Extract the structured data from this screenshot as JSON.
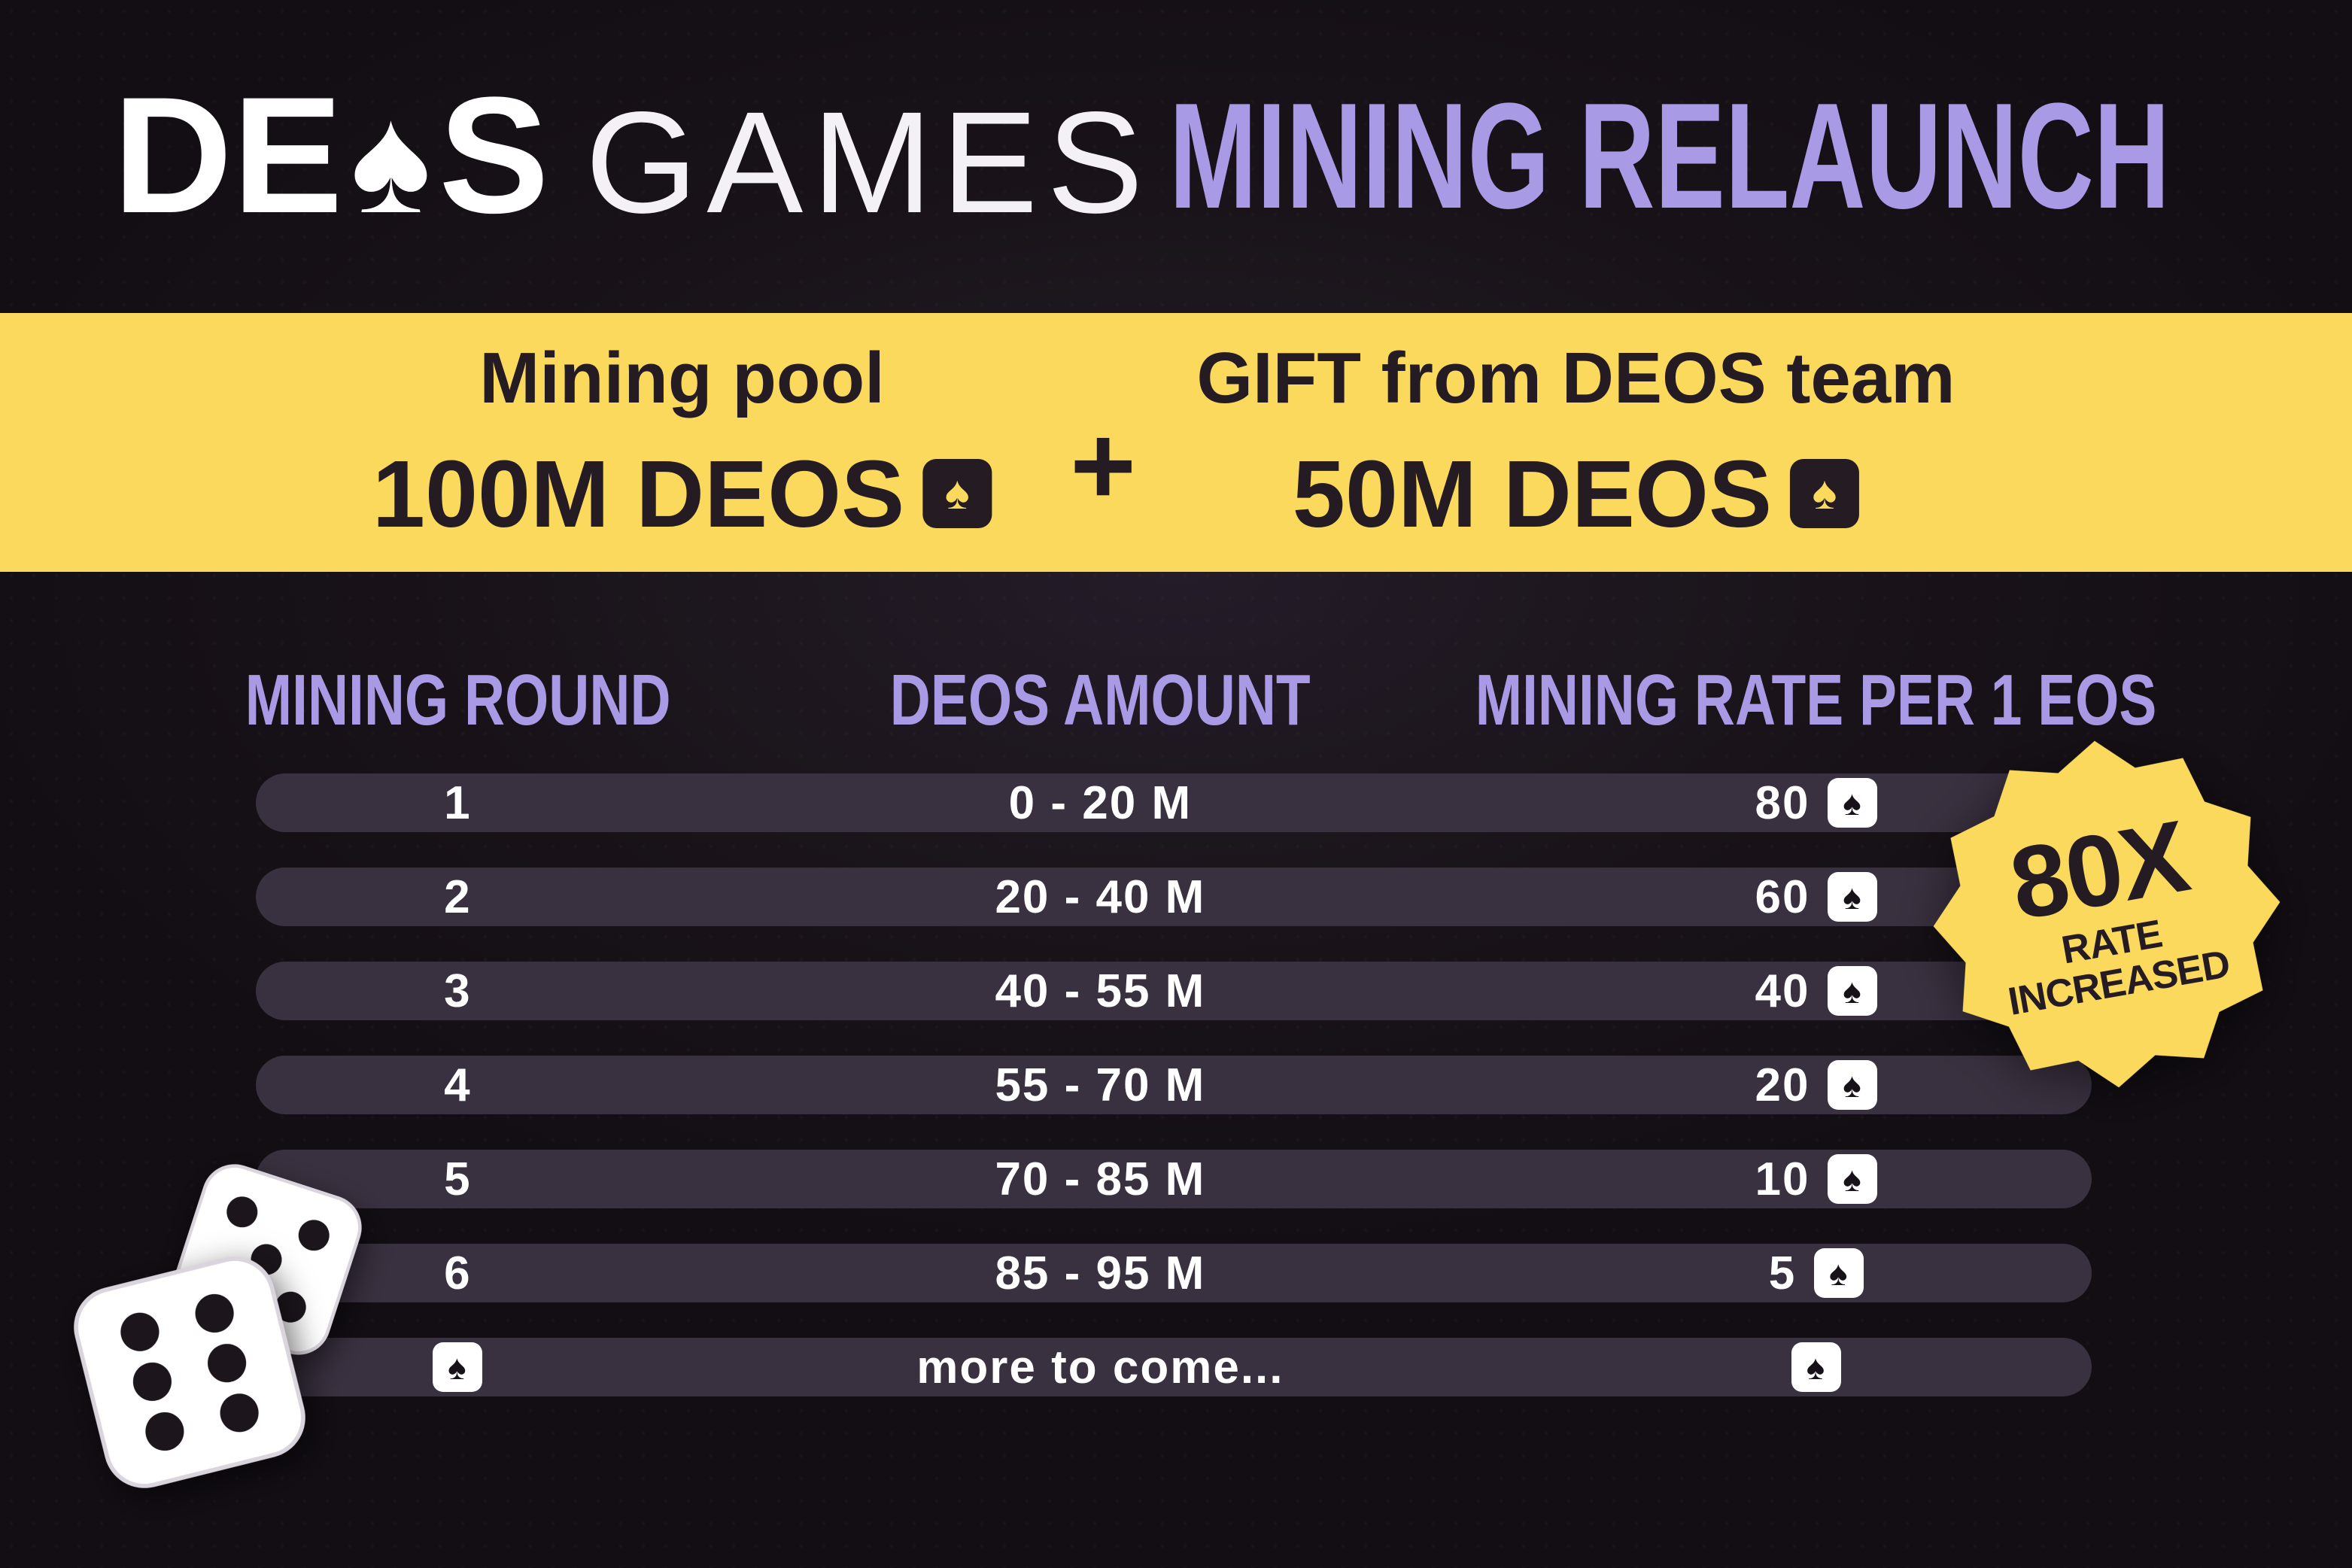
{
  "icons": {
    "spade": "♠"
  },
  "header": {
    "brand_de": "DE",
    "brand_s": "S",
    "brand_games": "GAMES",
    "title": "MINING RELAUNCH"
  },
  "banner": {
    "left_label": "Mining pool",
    "left_value": "100M DEOS",
    "plus": "+",
    "right_label": "GIFT from DEOS team",
    "right_value": "50M DEOS"
  },
  "table": {
    "headers": [
      "MINING ROUND",
      "DEOS AMOUNT",
      "MINING RATE PER 1 EOS"
    ],
    "rows": [
      {
        "round": "1",
        "amount": "0 - 20 M",
        "rate": "80"
      },
      {
        "round": "2",
        "amount": "20 - 40 M",
        "rate": "60"
      },
      {
        "round": "3",
        "amount": "40 - 55 M",
        "rate": "40"
      },
      {
        "round": "4",
        "amount": "55 - 70 M",
        "rate": "20"
      },
      {
        "round": "5",
        "amount": "70 - 85 M",
        "rate": "10"
      },
      {
        "round": "6",
        "amount": "85 - 95 M",
        "rate": "5"
      },
      {
        "round": "",
        "amount": "more to come...",
        "rate": ""
      }
    ]
  },
  "badge": {
    "value": "80X",
    "line2": "RATE",
    "line3": "INCREASED"
  },
  "colors": {
    "background": "#17121a",
    "accent_purple": "#a99ae6",
    "banner_yellow": "#fbd95c",
    "row_background": "#3a3140",
    "dark_text": "#241c22"
  }
}
